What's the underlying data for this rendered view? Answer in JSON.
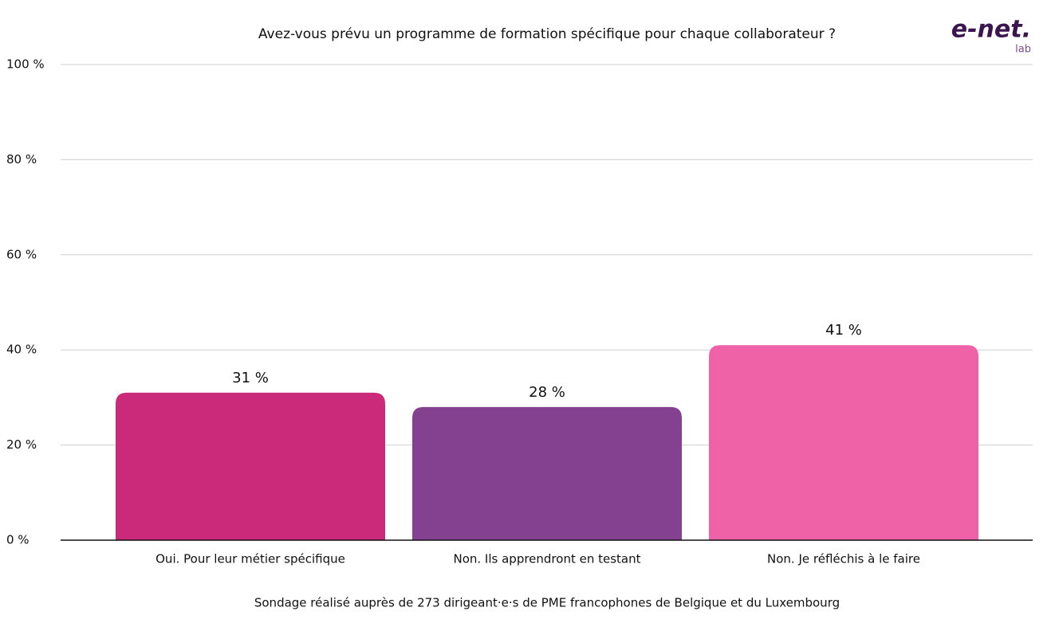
{
  "chart_data": {
    "type": "bar",
    "title": "Avez-vous prévu un programme de formation spécifique pour chaque collaborateur ?",
    "note": "Sondage réalisé auprès de 273 dirigeant·e·s de PME francophones de Belgique et du Luxembourg",
    "categories": [
      "Oui. Pour leur métier spécifique",
      "Non. Ils apprendront en testant",
      "Non. Je réfléchis à le faire"
    ],
    "values": [
      31,
      28,
      41
    ],
    "value_labels": [
      "31 %",
      "28 %",
      "41 %"
    ],
    "colors": [
      "#cb2a7b",
      "#84418f",
      "#ef62a8"
    ],
    "ylim": [
      0,
      100
    ],
    "yticks": [
      {
        "value": 0,
        "label": "0 %"
      },
      {
        "value": 20,
        "label": "20 %"
      },
      {
        "value": 40,
        "label": "40 %"
      },
      {
        "value": 60,
        "label": "60 %"
      },
      {
        "value": 80,
        "label": "80 %"
      },
      {
        "value": 100,
        "label": "100 %"
      }
    ],
    "grid": true
  },
  "logo": {
    "text": "e-net.",
    "sub": "lab"
  }
}
